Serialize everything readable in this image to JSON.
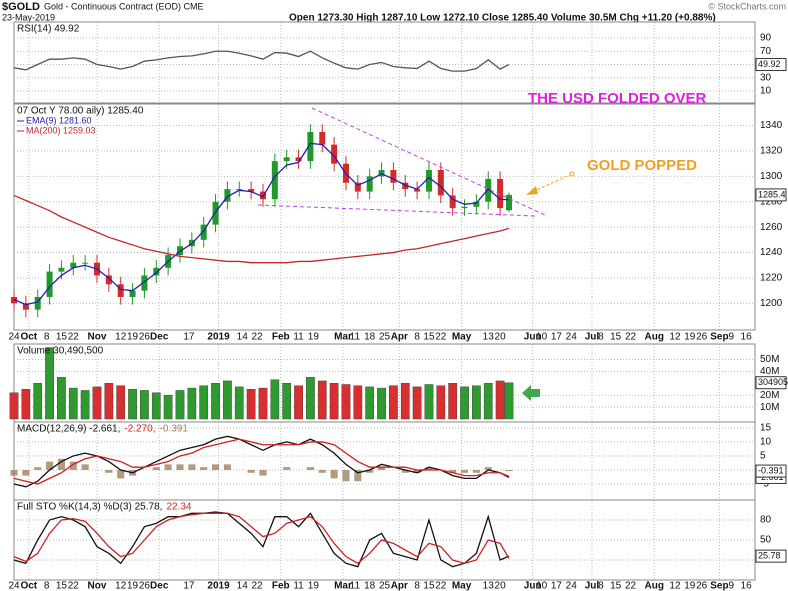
{
  "header": {
    "symbol": "$GOLD",
    "name": "Gold - Continuous Contract (EOD) CME",
    "date": "23-May-2019",
    "quote": "Open 1273.30 High 1287.10 Low 1272.10 Close 1285.40 Volume 30.5M Chg +11.20 (+0.88%)",
    "credit": "© StockCharts.com"
  },
  "chart_data": [
    {
      "type": "line",
      "title": "RSI(14) 49.92",
      "xlim": [
        0,
        250
      ],
      "ylim": [
        -8,
        114
      ],
      "yticks": [
        10,
        30,
        50,
        70,
        90
      ],
      "grid": true,
      "x": [
        0,
        4,
        8,
        12,
        16,
        20,
        24,
        28,
        32,
        36,
        40,
        44,
        48,
        52,
        56,
        60,
        64,
        68,
        72,
        76,
        80,
        84,
        88,
        92,
        96,
        100,
        104,
        108,
        112,
        116,
        120,
        124,
        128,
        132,
        136,
        140,
        144,
        148,
        152,
        156,
        160,
        164,
        167
      ],
      "series": [
        {
          "color": "#555555",
          "values": [
            45,
            42,
            50,
            58,
            58,
            60,
            58,
            50,
            47,
            43,
            47,
            55,
            57,
            60,
            62,
            63,
            66,
            70,
            70,
            67,
            63,
            58,
            68,
            67,
            62,
            70,
            60,
            52,
            45,
            43,
            50,
            53,
            47,
            45,
            44,
            55,
            44,
            40,
            40,
            44,
            57,
            43,
            49.92
          ]
        }
      ]
    },
    {
      "type": "candlestick",
      "title": "07 Oct Y 78.00 aily) 1285.40",
      "xlim": [
        0,
        250
      ],
      "ylim": [
        1179,
        1357
      ],
      "yticks": [
        1200,
        1220,
        1240,
        1260,
        1280,
        1300,
        1320,
        1340
      ],
      "grid": true,
      "up_color": "#1f9a2a",
      "down_color": "#d42a2a",
      "xticks": [
        {
          "value": 0,
          "label": "24"
        },
        {
          "value": 5,
          "label": "Oct"
        },
        {
          "value": 11,
          "label": "8"
        },
        {
          "value": 16,
          "label": "15"
        },
        {
          "value": 20,
          "label": "22"
        },
        {
          "value": 28,
          "label": "Nov"
        },
        {
          "value": 36,
          "label": "12"
        },
        {
          "value": 40,
          "label": "19"
        },
        {
          "value": 44,
          "label": "26"
        },
        {
          "value": 49,
          "label": "Dec"
        },
        {
          "value": 59,
          "label": "17"
        },
        {
          "value": 69,
          "label": "2019"
        },
        {
          "value": 77,
          "label": "14"
        },
        {
          "value": 82,
          "label": "22"
        },
        {
          "value": 90,
          "label": "Feb"
        },
        {
          "value": 96,
          "label": "11"
        },
        {
          "value": 101,
          "label": "19"
        },
        {
          "value": 111,
          "label": "Mar"
        },
        {
          "value": 115,
          "label": "11"
        },
        {
          "value": 120,
          "label": "18"
        },
        {
          "value": 125,
          "label": "25"
        },
        {
          "value": 130,
          "label": "Apr"
        },
        {
          "value": 136,
          "label": "8"
        },
        {
          "value": 140,
          "label": "15"
        },
        {
          "value": 144,
          "label": "22"
        },
        {
          "value": 151,
          "label": "May"
        },
        {
          "value": 160,
          "label": "13"
        },
        {
          "value": 164,
          "label": "20"
        },
        {
          "value": 175,
          "label": "Jun"
        },
        {
          "value": 178,
          "label": "10"
        },
        {
          "value": 183,
          "label": "17"
        },
        {
          "value": 188,
          "label": "24"
        },
        {
          "value": 195,
          "label": "Jul"
        },
        {
          "value": 198,
          "label": "8"
        },
        {
          "value": 203,
          "label": "15"
        },
        {
          "value": 208,
          "label": "22"
        },
        {
          "value": 216,
          "label": "Aug"
        },
        {
          "value": 223,
          "label": "12"
        },
        {
          "value": 228,
          "label": "19"
        },
        {
          "value": 232,
          "label": "26"
        },
        {
          "value": 238,
          "label": "Sep"
        },
        {
          "value": 242,
          "label": "9"
        },
        {
          "value": 247,
          "label": "16"
        }
      ],
      "x": [
        0,
        4,
        8,
        12,
        16,
        20,
        24,
        28,
        32,
        36,
        40,
        44,
        48,
        52,
        56,
        60,
        64,
        68,
        72,
        76,
        80,
        84,
        88,
        92,
        96,
        100,
        104,
        108,
        112,
        116,
        120,
        124,
        128,
        132,
        136,
        140,
        144,
        148,
        152,
        156,
        160,
        164,
        167
      ],
      "open": [
        1205,
        1200,
        1195,
        1205,
        1225,
        1228,
        1232,
        1232,
        1222,
        1215,
        1205,
        1210,
        1222,
        1228,
        1238,
        1245,
        1250,
        1262,
        1280,
        1290,
        1290,
        1288,
        1282,
        1312,
        1315,
        1312,
        1335,
        1325,
        1310,
        1295,
        1288,
        1300,
        1305,
        1295,
        1290,
        1288,
        1305,
        1285,
        1275,
        1276,
        1280,
        1298,
        1273.3
      ],
      "high": [
        1211,
        1206,
        1211,
        1231,
        1234,
        1238,
        1238,
        1238,
        1228,
        1221,
        1216,
        1228,
        1234,
        1244,
        1251,
        1256,
        1268,
        1286,
        1296,
        1296,
        1296,
        1294,
        1318,
        1321,
        1321,
        1341,
        1341,
        1331,
        1316,
        1301,
        1306,
        1311,
        1311,
        1301,
        1296,
        1311,
        1311,
        1291,
        1282,
        1286,
        1304,
        1304,
        1287.1
      ],
      "low": [
        1194,
        1189,
        1189,
        1199,
        1219,
        1222,
        1226,
        1216,
        1209,
        1199,
        1199,
        1204,
        1216,
        1222,
        1232,
        1239,
        1244,
        1256,
        1274,
        1284,
        1282,
        1276,
        1276,
        1306,
        1306,
        1306,
        1319,
        1304,
        1289,
        1282,
        1282,
        1294,
        1289,
        1284,
        1282,
        1282,
        1279,
        1269,
        1269,
        1270,
        1274,
        1269,
        1272.1
      ],
      "close": [
        1200,
        1195,
        1205,
        1225,
        1228,
        1232,
        1232,
        1222,
        1215,
        1205,
        1210,
        1222,
        1228,
        1238,
        1245,
        1250,
        1262,
        1280,
        1290,
        1290,
        1288,
        1282,
        1312,
        1315,
        1312,
        1335,
        1325,
        1310,
        1295,
        1288,
        1300,
        1305,
        1295,
        1290,
        1288,
        1305,
        1285,
        1275,
        1276,
        1280,
        1298,
        1275,
        1285.4
      ],
      "series": [
        {
          "name": "EMA(9) 1281.60",
          "color": "#2020b0",
          "values": [
            1203,
            1199,
            1201,
            1213,
            1222,
            1228,
            1230,
            1227,
            1220,
            1211,
            1210,
            1217,
            1224,
            1233,
            1241,
            1247,
            1257,
            1272,
            1284,
            1289,
            1288,
            1284,
            1300,
            1309,
            1311,
            1326,
            1325,
            1316,
            1302,
            1293,
            1297,
            1302,
            1298,
            1293,
            1290,
            1299,
            1292,
            1282,
            1278,
            1279,
            1290,
            1282,
            1281.6
          ]
        },
        {
          "name": "MA(200) 1259.03",
          "color": "#c0282a",
          "values": [
            1285,
            1281,
            1277,
            1273,
            1268,
            1264,
            1260,
            1256,
            1252,
            1249,
            1246,
            1243,
            1241,
            1239,
            1237,
            1236,
            1235,
            1234,
            1233,
            1233,
            1232,
            1232,
            1232,
            1232,
            1233,
            1233,
            1234,
            1235,
            1236,
            1237,
            1238,
            1239,
            1240,
            1242,
            1243,
            1245,
            1247,
            1249,
            1251,
            1253,
            1255,
            1257,
            1259.03
          ]
        }
      ],
      "annotations": [
        {
          "text": "THE USD FOLDED OVER",
          "color": "#e020e0"
        },
        {
          "text": "GOLD POPPED",
          "color": "#f0a020"
        }
      ]
    },
    {
      "type": "bar",
      "title": "Volume 30,490,500",
      "xlim": [
        0,
        250
      ],
      "ylim": [
        -2500000,
        63000000
      ],
      "grid": true,
      "up_color": "#2f9a2f",
      "down_color": "#d83030",
      "yticks": [
        {
          "value": 10000000,
          "label": "10M"
        },
        {
          "value": 20000000,
          "label": "20M"
        },
        {
          "value": 40000000,
          "label": "40M"
        },
        {
          "value": 50000000,
          "label": "50M"
        }
      ],
      "x": [
        0,
        4,
        8,
        12,
        16,
        20,
        24,
        28,
        32,
        36,
        40,
        44,
        48,
        52,
        56,
        60,
        64,
        68,
        72,
        76,
        80,
        84,
        88,
        92,
        96,
        100,
        104,
        108,
        112,
        116,
        120,
        124,
        128,
        132,
        136,
        140,
        144,
        148,
        152,
        156,
        160,
        164,
        167
      ],
      "values": [
        22000000,
        25000000,
        30000000,
        60000000,
        35000000,
        26000000,
        24000000,
        27000000,
        30000000,
        28000000,
        25000000,
        24000000,
        22000000,
        20000000,
        24000000,
        26000000,
        28000000,
        30000000,
        32000000,
        27000000,
        25000000,
        26000000,
        33000000,
        30000000,
        28000000,
        35000000,
        32000000,
        30000000,
        29000000,
        28000000,
        27000000,
        26000000,
        28000000,
        30000000,
        27000000,
        29000000,
        28000000,
        30000000,
        27000000,
        28000000,
        30000000,
        32000000,
        30490500
      ]
    },
    {
      "type": "line",
      "xlim": [
        0,
        250
      ],
      "ylim": [
        -10.7,
        17.1
      ],
      "yticks": [
        -5,
        0,
        5,
        10,
        15
      ],
      "grid": true,
      "x": [
        0,
        4,
        8,
        12,
        16,
        20,
        24,
        28,
        32,
        36,
        40,
        44,
        48,
        52,
        56,
        60,
        64,
        68,
        72,
        76,
        80,
        84,
        88,
        92,
        96,
        100,
        104,
        108,
        112,
        116,
        120,
        124,
        128,
        132,
        136,
        140,
        144,
        148,
        152,
        156,
        160,
        164,
        167
      ],
      "series": [
        {
          "name": "MACD(12,26,9) -2.661,",
          "color": "#111111",
          "values": [
            -5,
            -6,
            -4,
            0,
            3,
            5,
            6,
            5,
            3,
            0,
            -1,
            1,
            3,
            5,
            7,
            8,
            9,
            11,
            12,
            11,
            9,
            7,
            9,
            10,
            9,
            11,
            9,
            6,
            2,
            -1,
            0,
            2,
            1,
            0,
            -1,
            1,
            0,
            -2,
            -3,
            -3,
            0,
            -1,
            -2.661
          ]
        },
        {
          "name": "-2.270,",
          "color": "#d02020",
          "values": [
            -3,
            -4,
            -5,
            -3,
            -1,
            2,
            4,
            5,
            4,
            3,
            1,
            1,
            2,
            3,
            5,
            6,
            8,
            9,
            10,
            11,
            10,
            9,
            9,
            9,
            9,
            10,
            10,
            9,
            6,
            3,
            1,
            1,
            1,
            1,
            0,
            0,
            0,
            -1,
            -2,
            -2,
            -1,
            -1,
            -2.27
          ]
        },
        {
          "name": "-0.391",
          "color": "#a08060",
          "type": "bar",
          "values": [
            -2,
            -2,
            1,
            3,
            4,
            3,
            2,
            0,
            -1,
            -3,
            -2,
            0,
            1,
            2,
            2,
            2,
            1,
            2,
            2,
            0,
            -1,
            -2,
            0,
            1,
            0,
            1,
            -1,
            -3,
            -4,
            -4,
            -1,
            1,
            0,
            -1,
            -1,
            1,
            0,
            -1,
            -1,
            -1,
            1,
            0,
            -0.391
          ]
        }
      ]
    },
    {
      "type": "line",
      "xlim": [
        0,
        250
      ],
      "ylim": [
        -10,
        110
      ],
      "yticks": [
        20,
        50,
        80
      ],
      "grid": true,
      "x": [
        0,
        4,
        8,
        12,
        16,
        20,
        24,
        28,
        32,
        36,
        40,
        44,
        48,
        52,
        56,
        60,
        64,
        68,
        72,
        76,
        80,
        84,
        88,
        92,
        96,
        100,
        104,
        108,
        112,
        116,
        120,
        124,
        128,
        132,
        136,
        140,
        144,
        148,
        152,
        156,
        160,
        164,
        167
      ],
      "series": [
        {
          "name": "Full STO %K(14,3) %D(3) 25.78,",
          "color": "#111111",
          "values": [
            20,
            15,
            50,
            80,
            85,
            80,
            70,
            40,
            30,
            15,
            40,
            70,
            75,
            85,
            85,
            90,
            90,
            92,
            90,
            75,
            60,
            40,
            85,
            85,
            70,
            90,
            60,
            30,
            15,
            10,
            50,
            60,
            30,
            25,
            20,
            80,
            20,
            10,
            15,
            30,
            85,
            20,
            25.78
          ]
        },
        {
          "name": "22.34",
          "color": "#d02020",
          "values": [
            25,
            18,
            30,
            60,
            80,
            82,
            78,
            60,
            40,
            25,
            30,
            50,
            70,
            80,
            85,
            88,
            90,
            90,
            90,
            85,
            70,
            55,
            60,
            75,
            80,
            85,
            70,
            45,
            25,
            15,
            30,
            50,
            45,
            35,
            25,
            45,
            40,
            20,
            15,
            20,
            50,
            45,
            22.34
          ]
        }
      ]
    }
  ]
}
